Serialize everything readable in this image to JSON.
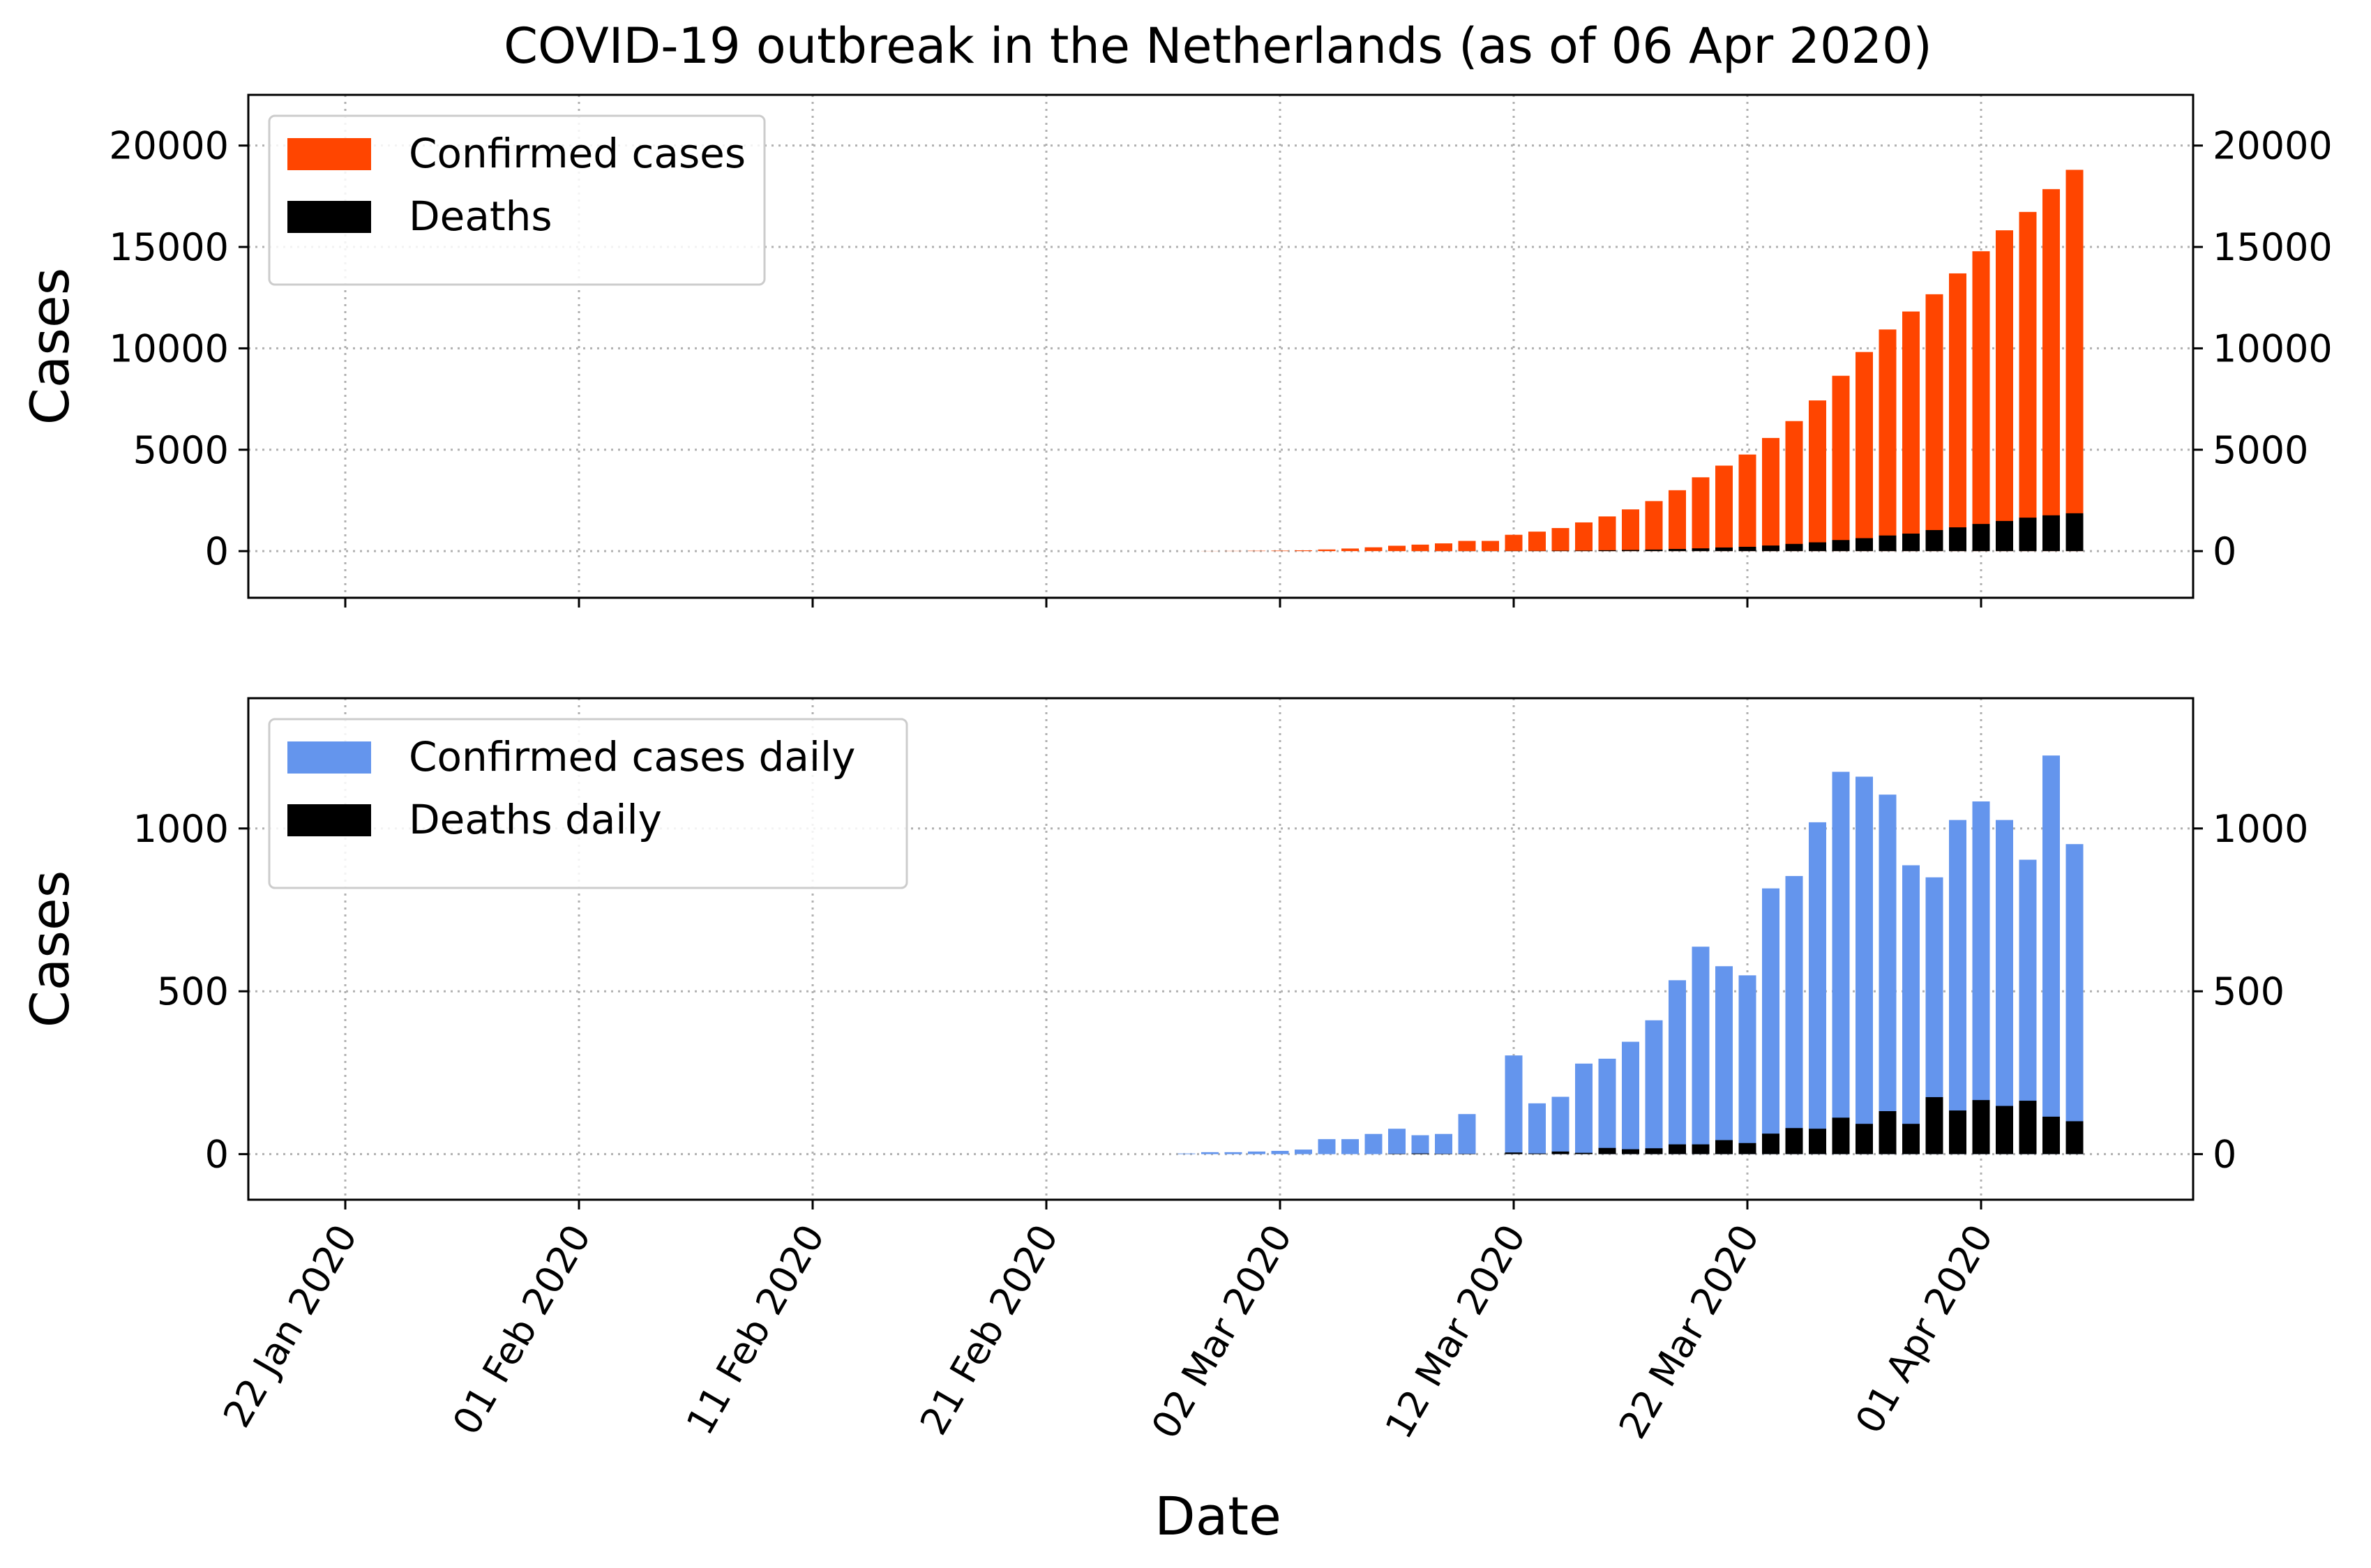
{
  "chart_data": [
    {
      "type": "bar",
      "title": "COVID-19 outbreak in the Netherlands (as of 06 Apr 2020)",
      "xlabel": "",
      "ylabel": "Cases",
      "ylim": [
        -2300,
        22500
      ],
      "yticks": [
        0,
        5000,
        10000,
        15000,
        20000
      ],
      "xticks": [
        "22 Jan 2020",
        "01 Feb 2020",
        "11 Feb 2020",
        "21 Feb 2020",
        "02 Mar 2020",
        "12 Mar 2020",
        "22 Mar 2020",
        "01 Apr 2020"
      ],
      "x_start": "2020-01-22",
      "x_end": "2020-04-06",
      "grid": true,
      "legend": "top-left",
      "series": [
        {
          "name": "Confirmed cases",
          "color": "#ff4500",
          "values": [
            0,
            0,
            0,
            0,
            0,
            0,
            0,
            0,
            0,
            0,
            0,
            0,
            0,
            0,
            0,
            0,
            0,
            0,
            0,
            0,
            0,
            0,
            0,
            0,
            0,
            0,
            0,
            0,
            0,
            0,
            0,
            0,
            0,
            0,
            0,
            0,
            1,
            6,
            10,
            18,
            24,
            38,
            82,
            128,
            188,
            265,
            321,
            382,
            503,
            503,
            806,
            962,
            1138,
            1416,
            1711,
            2058,
            2467,
            3003,
            3640,
            4216,
            4764,
            5580,
            6412,
            7431,
            8647,
            9819,
            10930,
            11817,
            12667,
            13696,
            14788,
            15821,
            16727,
            17851,
            18803
          ]
        },
        {
          "name": "Deaths",
          "color": "#000000",
          "values": [
            0,
            0,
            0,
            0,
            0,
            0,
            0,
            0,
            0,
            0,
            0,
            0,
            0,
            0,
            0,
            0,
            0,
            0,
            0,
            0,
            0,
            0,
            0,
            0,
            0,
            0,
            0,
            0,
            0,
            0,
            0,
            0,
            0,
            0,
            0,
            0,
            0,
            0,
            0,
            0,
            0,
            0,
            0,
            0,
            0,
            1,
            3,
            4,
            5,
            5,
            10,
            12,
            20,
            24,
            43,
            58,
            76,
            106,
            136,
            179,
            213,
            276,
            356,
            434,
            546,
            639,
            771,
            864,
            1039,
            1173,
            1339,
            1487,
            1651,
            1766,
            1867
          ]
        }
      ]
    },
    {
      "type": "bar",
      "title": "",
      "xlabel": "Date",
      "ylabel": "Cases",
      "ylim": [
        -140,
        1400
      ],
      "yticks": [
        0,
        500,
        1000
      ],
      "xticks": [
        "22 Jan 2020",
        "01 Feb 2020",
        "11 Feb 2020",
        "21 Feb 2020",
        "02 Mar 2020",
        "12 Mar 2020",
        "22 Mar 2020",
        "01 Apr 2020"
      ],
      "x_start": "2020-01-22",
      "x_end": "2020-04-06",
      "grid": true,
      "legend": "top-left",
      "series": [
        {
          "name": "Confirmed cases daily",
          "color": "#6495ed",
          "values": [
            0,
            0,
            0,
            0,
            0,
            0,
            0,
            0,
            0,
            0,
            0,
            0,
            0,
            0,
            0,
            0,
            0,
            0,
            0,
            0,
            0,
            0,
            0,
            0,
            0,
            0,
            0,
            0,
            0,
            0,
            0,
            0,
            0,
            0,
            0,
            0,
            2,
            6,
            6,
            8,
            10,
            14,
            46,
            46,
            62,
            78,
            58,
            62,
            123,
            0,
            303,
            156,
            176,
            278,
            293,
            345,
            411,
            534,
            637,
            577,
            549,
            816,
            854,
            1019,
            1174,
            1159,
            1104,
            887,
            850,
            1026,
            1083,
            1026,
            904,
            1224,
            952
          ]
        },
        {
          "name": "Deaths daily",
          "color": "#000000",
          "values": [
            0,
            0,
            0,
            0,
            0,
            0,
            0,
            0,
            0,
            0,
            0,
            0,
            0,
            0,
            0,
            0,
            0,
            0,
            0,
            0,
            0,
            0,
            0,
            0,
            0,
            0,
            0,
            0,
            0,
            0,
            0,
            0,
            0,
            0,
            0,
            0,
            0,
            0,
            0,
            0,
            0,
            0,
            0,
            0,
            0,
            1,
            2,
            1,
            1,
            0,
            5,
            2,
            8,
            4,
            19,
            15,
            18,
            30,
            30,
            43,
            34,
            63,
            80,
            78,
            112,
            93,
            132,
            93,
            175,
            134,
            166,
            148,
            164,
            115,
            101
          ]
        }
      ]
    }
  ]
}
